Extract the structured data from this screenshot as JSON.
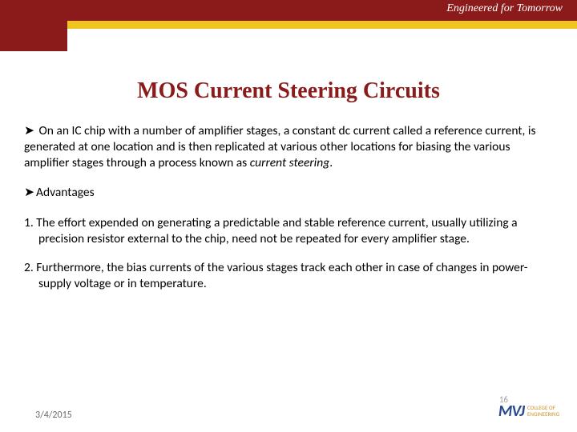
{
  "header": {
    "tagline": "Engineered for Tomorrow",
    "colors": {
      "crimson": "#8b1a1a",
      "gold": "#f0c420"
    }
  },
  "title": "MOS Current Steering Circuits",
  "body": {
    "intro_bullet": "➤",
    "intro_pre": "On an IC chip with a number of amplifier stages, a constant dc current called a  reference current,  is generated at one location and is then replicated at various other locations for biasing the various amplifier stages through a process known as ",
    "intro_italic": "current steering",
    "intro_post": ".",
    "adv_heading": "Advantages",
    "adv1": "1. The effort expended on generating a predictable and stable reference current, usually utilizing a precision resistor external to the chip, need not be repeated for every amplifier stage.",
    "adv2": "2. Furthermore, the bias currents of the various stages track each other in case of changes in power-supply voltage or in temperature."
  },
  "footer": {
    "date": "3/4/2015",
    "page": "16",
    "logo_mark": "MVJ",
    "logo_sub1": "COLLEGE OF",
    "logo_sub2": "ENGINEERING"
  }
}
